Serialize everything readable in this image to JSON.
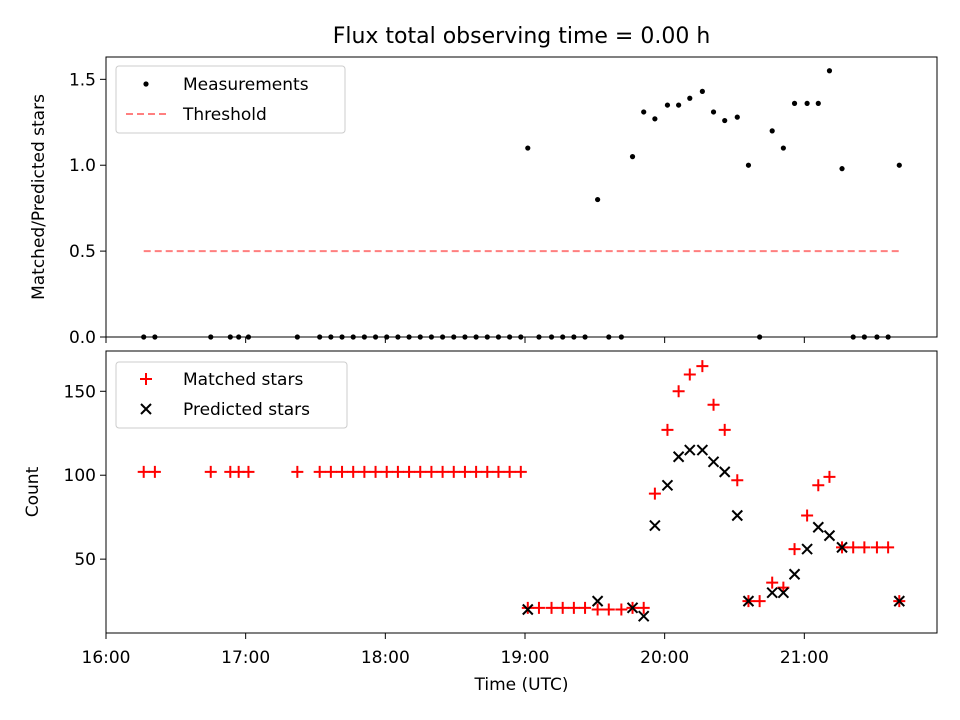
{
  "title": "Flux total observing time = 0.00 h",
  "colors": {
    "measurements": "#000000",
    "threshold": "#ff7f7f",
    "matched": "#ff0000",
    "predicted": "#000000"
  },
  "chart_data": [
    {
      "type": "scatter",
      "ylabel": "Matched/Predicted stars",
      "xlim": [
        16.0,
        21.95
      ],
      "ylim": [
        0.0,
        1.63
      ],
      "yticks": [
        0.0,
        0.5,
        1.0,
        1.5
      ],
      "ytick_labels": [
        "0.0",
        "0.5",
        "1.0",
        "1.5"
      ],
      "grid": false,
      "legend_position": "top-left",
      "series": [
        {
          "name": "Measurements",
          "marker": "dot",
          "x": [
            16.27,
            16.35,
            16.75,
            16.89,
            16.95,
            17.02,
            17.37,
            17.53,
            17.61,
            17.69,
            17.77,
            17.85,
            17.93,
            18.01,
            18.09,
            18.17,
            18.25,
            18.33,
            18.41,
            18.49,
            18.57,
            18.65,
            18.73,
            18.81,
            18.89,
            18.97,
            19.02,
            19.1,
            19.19,
            19.27,
            19.35,
            19.43,
            19.52,
            19.6,
            19.69,
            19.77,
            19.85,
            19.93,
            20.02,
            20.1,
            20.18,
            20.27,
            20.35,
            20.43,
            20.52,
            20.6,
            20.68,
            20.77,
            20.85,
            20.93,
            21.02,
            21.1,
            21.18,
            21.27,
            21.35,
            21.43,
            21.52,
            21.6,
            21.68
          ],
          "y": [
            0.0,
            0.0,
            0.0,
            0.0,
            0.0,
            0.0,
            0.0,
            0.0,
            0.0,
            0.0,
            0.0,
            0.0,
            0.0,
            0.0,
            0.0,
            0.0,
            0.0,
            0.0,
            0.0,
            0.0,
            0.0,
            0.0,
            0.0,
            0.0,
            0.0,
            0.0,
            1.1,
            0.0,
            0.0,
            0.0,
            0.0,
            0.0,
            0.8,
            0.0,
            0.0,
            1.05,
            1.31,
            1.27,
            1.35,
            1.35,
            1.39,
            1.43,
            1.31,
            1.26,
            1.28,
            1.0,
            0.0,
            1.2,
            1.1,
            1.36,
            1.36,
            1.36,
            1.55,
            0.98,
            0.0,
            0.0,
            0.0,
            0.0,
            1.0
          ]
        },
        {
          "name": "Threshold",
          "marker": "dashed-line",
          "x": [
            16.27,
            21.68
          ],
          "y": [
            0.5,
            0.5
          ]
        }
      ]
    },
    {
      "type": "scatter",
      "ylabel": "Count",
      "xlabel": "Time (UTC)",
      "xlim": [
        16.0,
        21.95
      ],
      "ylim": [
        6,
        174
      ],
      "yticks": [
        50,
        100,
        150
      ],
      "ytick_labels": [
        "50",
        "100",
        "150"
      ],
      "xticks": [
        16,
        17,
        18,
        19,
        20,
        21
      ],
      "xtick_labels": [
        "16:00",
        "17:00",
        "18:00",
        "19:00",
        "20:00",
        "21:00"
      ],
      "grid": false,
      "legend_position": "top-left",
      "series": [
        {
          "name": "Matched stars",
          "marker": "plus",
          "x": [
            16.27,
            16.35,
            16.75,
            16.89,
            16.95,
            17.02,
            17.37,
            17.53,
            17.61,
            17.69,
            17.77,
            17.85,
            17.93,
            18.01,
            18.09,
            18.17,
            18.25,
            18.33,
            18.41,
            18.49,
            18.57,
            18.65,
            18.73,
            18.81,
            18.89,
            18.97,
            19.02,
            19.1,
            19.19,
            19.27,
            19.35,
            19.43,
            19.52,
            19.6,
            19.69,
            19.77,
            19.85,
            19.93,
            20.02,
            20.1,
            20.18,
            20.27,
            20.35,
            20.43,
            20.52,
            20.6,
            20.68,
            20.77,
            20.85,
            20.93,
            21.02,
            21.1,
            21.18,
            21.27,
            21.35,
            21.43,
            21.52,
            21.6,
            21.68
          ],
          "y": [
            102,
            102,
            102,
            102,
            102,
            102,
            102,
            102,
            102,
            102,
            102,
            102,
            102,
            102,
            102,
            102,
            102,
            102,
            102,
            102,
            102,
            102,
            102,
            102,
            102,
            102,
            21,
            21,
            21,
            21,
            21,
            21,
            20,
            20,
            20,
            21,
            21,
            89,
            127,
            150,
            160,
            165,
            142,
            127,
            97,
            25,
            25,
            36,
            33,
            56,
            76,
            94,
            99,
            57,
            57,
            57,
            57,
            57,
            25
          ]
        },
        {
          "name": "Predicted stars",
          "marker": "x",
          "x": [
            19.02,
            19.52,
            19.77,
            19.85,
            19.93,
            20.02,
            20.1,
            20.18,
            20.27,
            20.35,
            20.43,
            20.52,
            20.6,
            20.77,
            20.85,
            20.93,
            21.02,
            21.1,
            21.18,
            21.27,
            21.68
          ],
          "y": [
            20,
            25,
            21,
            16,
            70,
            94,
            111,
            115,
            115,
            108,
            102,
            76,
            25,
            30,
            30,
            41,
            56,
            69,
            64,
            57,
            25
          ]
        }
      ]
    }
  ]
}
